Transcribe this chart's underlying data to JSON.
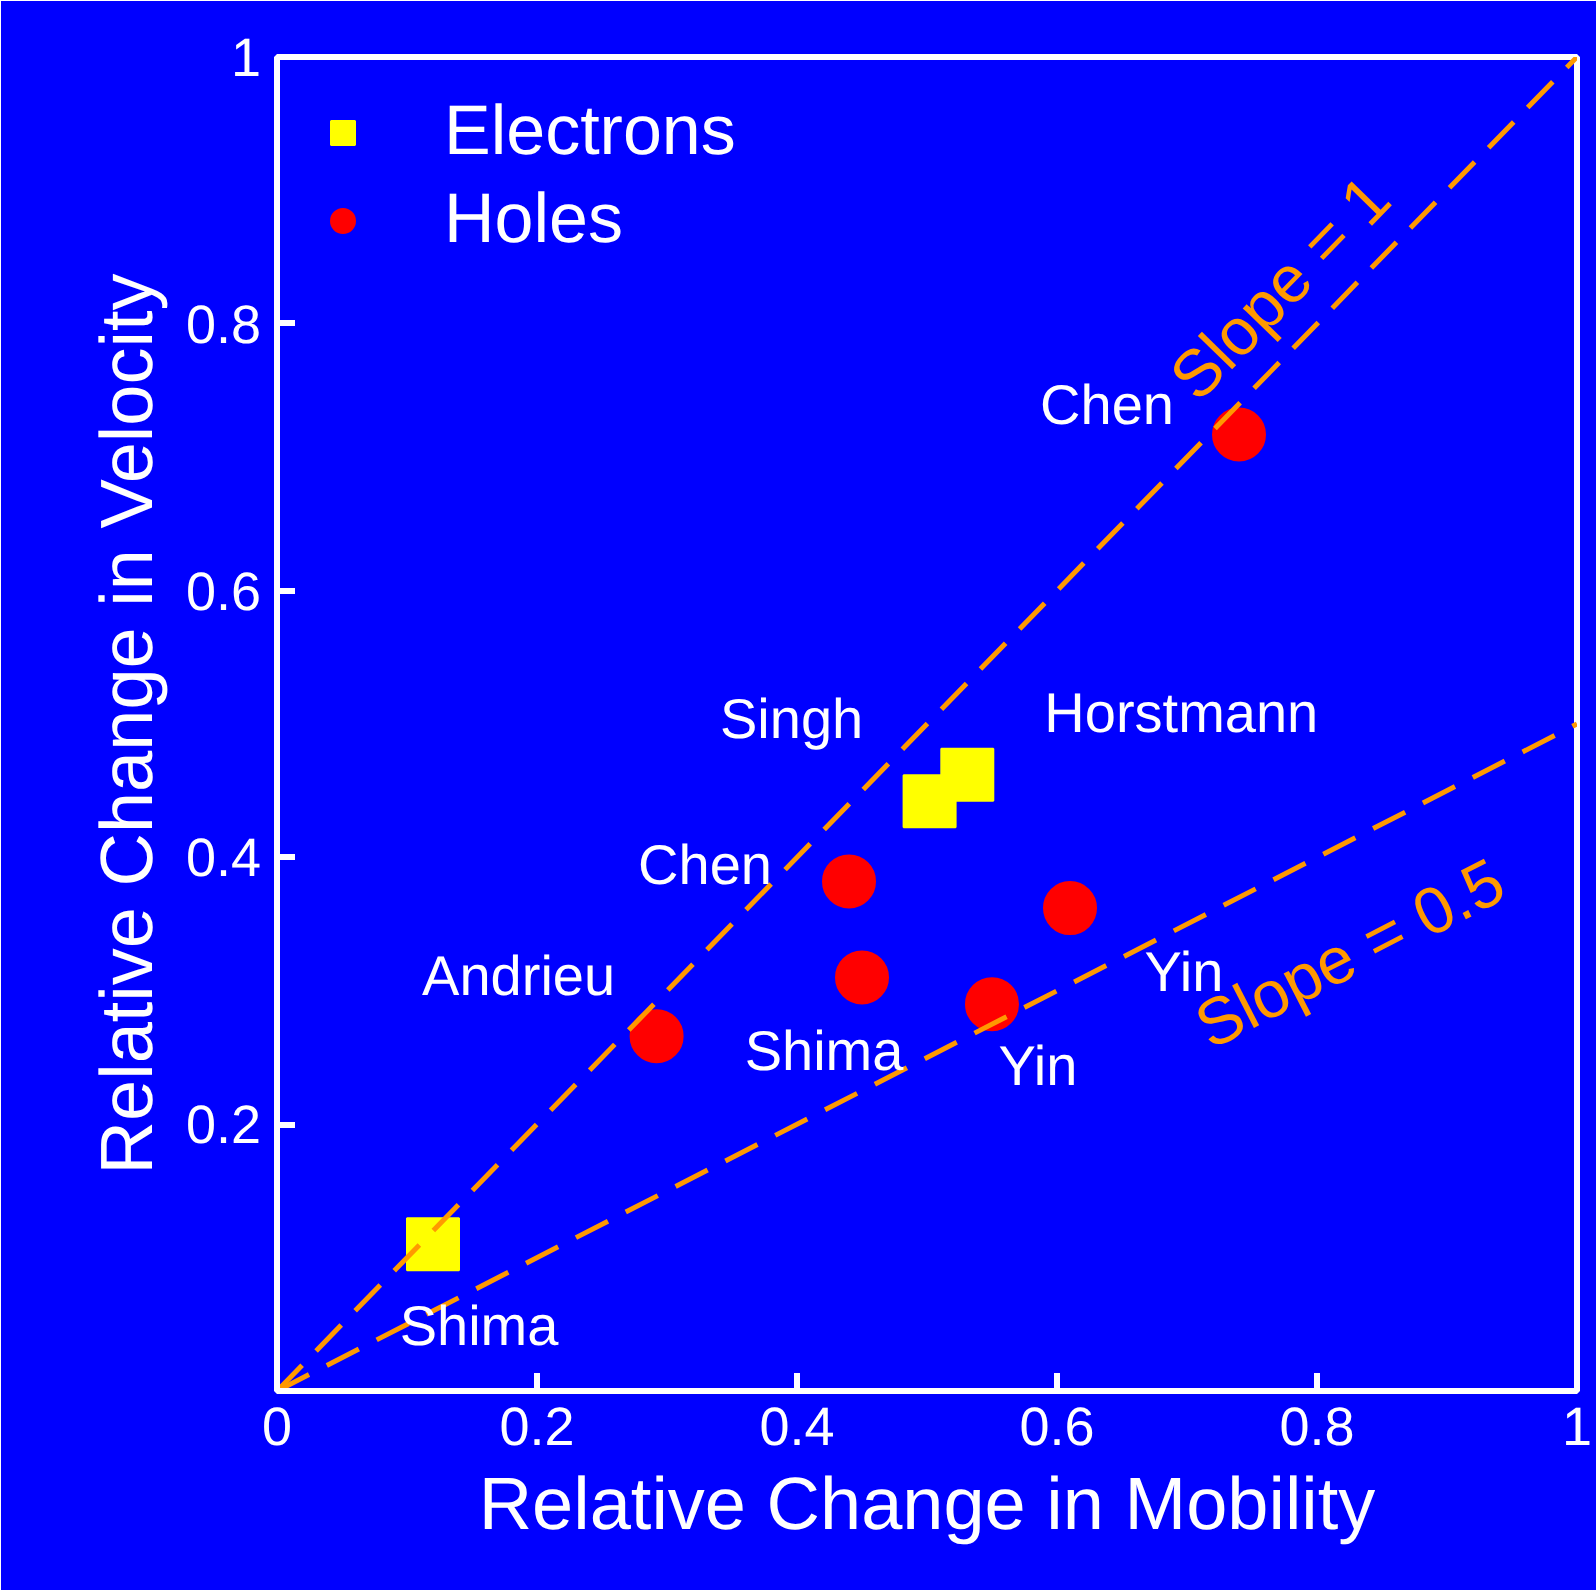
{
  "chart_data": {
    "type": "scatter",
    "xlabel": "Relative Change in Mobility",
    "ylabel": "Relative Change in Velocity",
    "xlim": [
      0,
      1
    ],
    "ylim": [
      0,
      1
    ],
    "xticks": [
      0,
      0.2,
      0.4,
      0.6,
      0.8,
      1
    ],
    "yticks": [
      0.2,
      0.4,
      0.6,
      0.8,
      1
    ],
    "grid": false,
    "legend": "top left",
    "series": [
      {
        "name": "Electrons",
        "marker": "square",
        "color": "#ffff00",
        "x": [
          0.12,
          0.502,
          0.531
        ],
        "values": [
          0.11,
          0.442,
          0.462
        ]
      },
      {
        "name": "Holes",
        "marker": "circle",
        "color": "#ff0000",
        "x": [
          0.292,
          0.44,
          0.45,
          0.55,
          0.61,
          0.74
        ],
        "values": [
          0.266,
          0.382,
          0.31,
          0.29,
          0.362,
          0.717
        ]
      },
      {
        "name": "Slope = 1",
        "type": "line",
        "line_style": "dashed",
        "color": "#ff9900",
        "x": [
          0,
          1
        ],
        "values": [
          0,
          1
        ]
      },
      {
        "name": "Slope = 0.5",
        "type": "line",
        "line_style": "dashed",
        "color": "#ff9900",
        "x": [
          0,
          1
        ],
        "values": [
          0,
          0.5
        ]
      }
    ],
    "annotations": [
      {
        "text": "Shima",
        "x": 0.12,
        "y": 0.11
      },
      {
        "text": "Singh",
        "x": 0.502,
        "y": 0.442
      },
      {
        "text": "Horstmann",
        "x": 0.531,
        "y": 0.462
      },
      {
        "text": "Andrieu",
        "x": 0.292,
        "y": 0.266
      },
      {
        "text": "Chen",
        "x": 0.44,
        "y": 0.382
      },
      {
        "text": "Shima",
        "x": 0.45,
        "y": 0.31
      },
      {
        "text": "Yin",
        "x": 0.55,
        "y": 0.29
      },
      {
        "text": "Yin",
        "x": 0.61,
        "y": 0.362
      },
      {
        "text": "Chen",
        "x": 0.74,
        "y": 0.717
      }
    ]
  }
}
